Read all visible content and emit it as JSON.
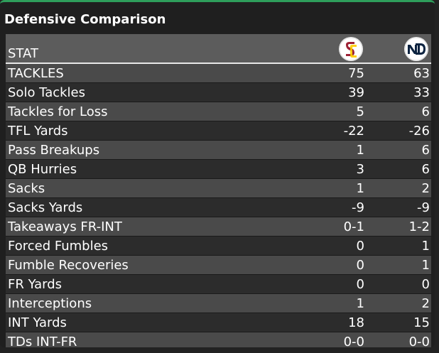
{
  "title": "Defensive Comparison",
  "header": {
    "stat_label": "STAT",
    "team1_logo": "usc-sc-logo",
    "team2_logo": "notre-dame-nd-logo",
    "colors": {
      "usc": "#9d2235",
      "usc_gold": "#ffcc00",
      "nd": "#0c2340",
      "accent": "#2e9e5b"
    }
  },
  "rows": [
    {
      "stat": "TACKLES",
      "usc": "75",
      "nd": "63"
    },
    {
      "stat": "Solo Tackles",
      "usc": "39",
      "nd": "33"
    },
    {
      "stat": "Tackles for Loss",
      "usc": "5",
      "nd": "6"
    },
    {
      "stat": "TFL Yards",
      "usc": "-22",
      "nd": "-26"
    },
    {
      "stat": "Pass Breakups",
      "usc": "1",
      "nd": "6"
    },
    {
      "stat": "QB Hurries",
      "usc": "3",
      "nd": "6"
    },
    {
      "stat": "Sacks",
      "usc": "1",
      "nd": "2"
    },
    {
      "stat": "Sacks Yards",
      "usc": "-9",
      "nd": "-9"
    },
    {
      "stat": "Takeaways FR-INT",
      "usc": "0-1",
      "nd": "1-2"
    },
    {
      "stat": "Forced Fumbles",
      "usc": "0",
      "nd": "1"
    },
    {
      "stat": "Fumble Recoveries",
      "usc": "0",
      "nd": "1"
    },
    {
      "stat": "FR Yards",
      "usc": "0",
      "nd": "0"
    },
    {
      "stat": "Interceptions",
      "usc": "1",
      "nd": "2"
    },
    {
      "stat": "INT Yards",
      "usc": "18",
      "nd": "15"
    },
    {
      "stat": "TDs INT-FR",
      "usc": "0-0",
      "nd": "0-0"
    }
  ]
}
